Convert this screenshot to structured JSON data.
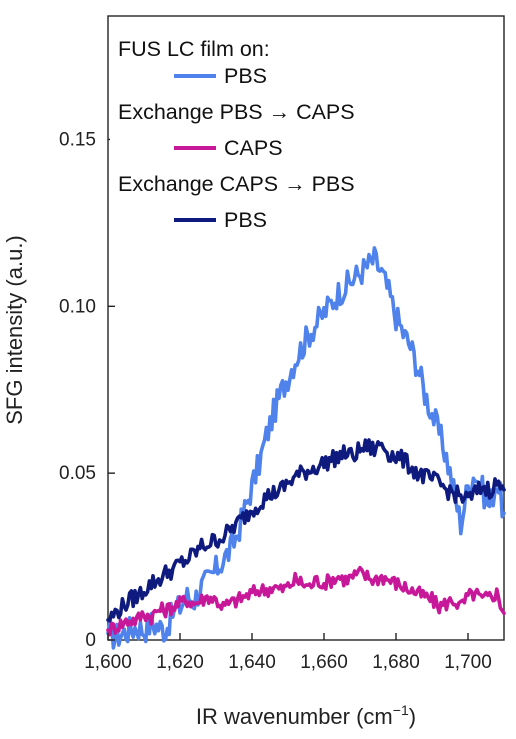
{
  "chart_data": {
    "type": "line",
    "title": "",
    "xlabel": "IR wavenumber (cm",
    "xlabel_sup": "−1",
    "xlabel_close": ")",
    "ylabel": "SFG intensity (a.u.)",
    "xlim": [
      1600,
      1710
    ],
    "ylim": [
      0,
      0.187
    ],
    "x_ticks": [
      1600,
      1620,
      1640,
      1660,
      1680,
      1700
    ],
    "x_tick_labels": [
      "1,600",
      "1,620",
      "1,640",
      "1,660",
      "1,680",
      "1,700"
    ],
    "y_ticks": [
      0,
      0.05,
      0.1,
      0.15
    ],
    "y_tick_labels": [
      "0",
      "0.05",
      "0.10",
      "0.15"
    ],
    "grid": false,
    "legend": {
      "placement": "top-left",
      "heading": "FUS LC film on:",
      "entries": [
        {
          "type": "series",
          "series_index": 0
        },
        {
          "type": "text",
          "text": "Exchange PBS → CAPS"
        },
        {
          "type": "series",
          "series_index": 1
        },
        {
          "type": "text",
          "text": "Exchange CAPS → PBS"
        },
        {
          "type": "series",
          "series_index": 2
        }
      ]
    },
    "series": [
      {
        "name": "PBS",
        "color": "#4f82ea",
        "x": [
          1600,
          1602,
          1604,
          1606,
          1608,
          1610,
          1612,
          1614,
          1616,
          1618,
          1620,
          1622,
          1624,
          1626,
          1628,
          1630,
          1632,
          1634,
          1636,
          1638,
          1640,
          1642,
          1644,
          1646,
          1648,
          1650,
          1652,
          1654,
          1656,
          1658,
          1660,
          1662,
          1664,
          1666,
          1668,
          1670,
          1672,
          1674,
          1676,
          1678,
          1680,
          1682,
          1684,
          1686,
          1688,
          1690,
          1692,
          1694,
          1696,
          1698,
          1700,
          1702,
          1704,
          1706,
          1708,
          1710
        ],
        "y": [
          0.002,
          0.001,
          0.002,
          0.003,
          0.004,
          0.003,
          0.005,
          0.004,
          0.003,
          0.008,
          0.01,
          0.013,
          0.012,
          0.016,
          0.018,
          0.021,
          0.024,
          0.027,
          0.032,
          0.039,
          0.046,
          0.053,
          0.061,
          0.068,
          0.074,
          0.079,
          0.084,
          0.088,
          0.092,
          0.095,
          0.098,
          0.101,
          0.104,
          0.106,
          0.108,
          0.11,
          0.112,
          0.114,
          0.11,
          0.104,
          0.097,
          0.092,
          0.088,
          0.082,
          0.074,
          0.068,
          0.062,
          0.055,
          0.045,
          0.035,
          0.046,
          0.05,
          0.045,
          0.04,
          0.048,
          0.038
        ]
      },
      {
        "name": "CAPS",
        "color": "#c8189a",
        "x": [
          1600,
          1602,
          1604,
          1606,
          1608,
          1610,
          1612,
          1614,
          1616,
          1618,
          1620,
          1622,
          1624,
          1626,
          1628,
          1630,
          1632,
          1634,
          1636,
          1638,
          1640,
          1642,
          1644,
          1646,
          1648,
          1650,
          1652,
          1654,
          1656,
          1658,
          1660,
          1662,
          1664,
          1666,
          1668,
          1670,
          1672,
          1674,
          1676,
          1678,
          1680,
          1682,
          1684,
          1686,
          1688,
          1690,
          1692,
          1694,
          1696,
          1698,
          1700,
          1702,
          1704,
          1706,
          1708,
          1710
        ],
        "y": [
          0.003,
          0.004,
          0.005,
          0.006,
          0.006,
          0.008,
          0.007,
          0.009,
          0.009,
          0.01,
          0.011,
          0.012,
          0.011,
          0.012,
          0.013,
          0.012,
          0.01,
          0.011,
          0.012,
          0.013,
          0.014,
          0.015,
          0.015,
          0.016,
          0.015,
          0.016,
          0.018,
          0.017,
          0.016,
          0.018,
          0.017,
          0.018,
          0.019,
          0.018,
          0.019,
          0.02,
          0.019,
          0.018,
          0.019,
          0.018,
          0.017,
          0.016,
          0.015,
          0.014,
          0.013,
          0.012,
          0.01,
          0.011,
          0.012,
          0.01,
          0.013,
          0.014,
          0.012,
          0.013,
          0.014,
          0.008
        ]
      },
      {
        "name": "PBS",
        "color": "#0f1a7e",
        "x": [
          1600,
          1602,
          1604,
          1606,
          1608,
          1610,
          1612,
          1614,
          1616,
          1618,
          1620,
          1622,
          1624,
          1626,
          1628,
          1630,
          1632,
          1634,
          1636,
          1638,
          1640,
          1642,
          1644,
          1646,
          1648,
          1650,
          1652,
          1654,
          1656,
          1658,
          1660,
          1662,
          1664,
          1666,
          1668,
          1670,
          1672,
          1674,
          1676,
          1678,
          1680,
          1682,
          1684,
          1686,
          1688,
          1690,
          1692,
          1694,
          1696,
          1698,
          1700,
          1702,
          1704,
          1706,
          1708,
          1710
        ],
        "y": [
          0.006,
          0.008,
          0.01,
          0.012,
          0.013,
          0.015,
          0.017,
          0.018,
          0.02,
          0.021,
          0.023,
          0.024,
          0.026,
          0.028,
          0.029,
          0.03,
          0.031,
          0.033,
          0.035,
          0.037,
          0.039,
          0.041,
          0.043,
          0.044,
          0.045,
          0.047,
          0.049,
          0.05,
          0.051,
          0.052,
          0.053,
          0.054,
          0.055,
          0.056,
          0.055,
          0.057,
          0.058,
          0.057,
          0.059,
          0.056,
          0.055,
          0.054,
          0.052,
          0.05,
          0.049,
          0.048,
          0.047,
          0.045,
          0.044,
          0.043,
          0.042,
          0.044,
          0.046,
          0.045,
          0.047,
          0.045
        ]
      }
    ]
  }
}
